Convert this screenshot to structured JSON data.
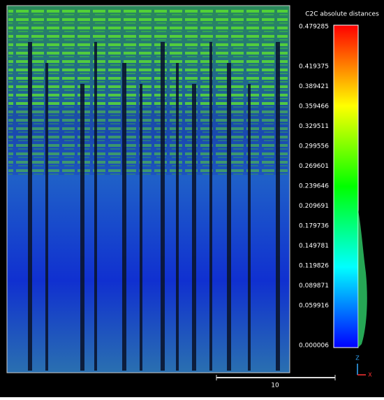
{
  "scale": {
    "title": "C2C absolute distances",
    "labels": [
      "0.479285",
      "0.419375",
      "0.389421",
      "0.359466",
      "0.329511",
      "0.299556",
      "0.269601",
      "0.239646",
      "0.209691",
      "0.179736",
      "0.149781",
      "0.119826",
      "0.089871",
      "0.059916",
      "0.000006"
    ]
  },
  "scale_bar": {
    "label": "10"
  },
  "axes": {
    "z": "Z",
    "x": "X"
  }
}
